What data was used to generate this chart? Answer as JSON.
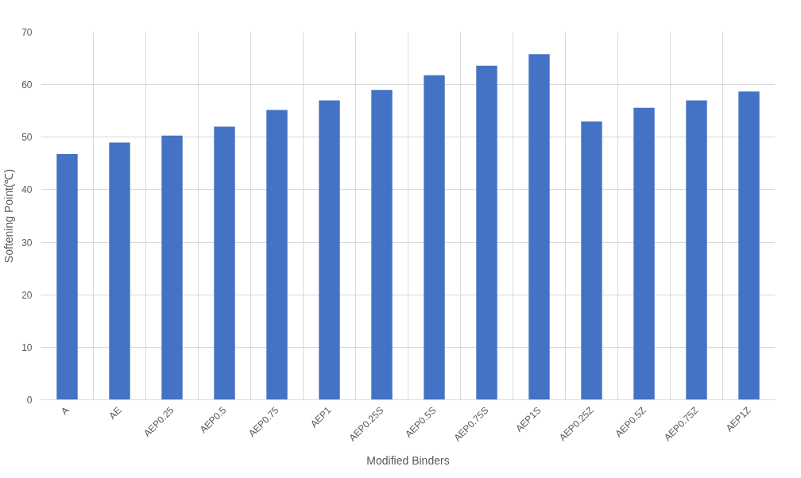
{
  "chart_data": {
    "type": "bar",
    "xlabel": "Modified Binders",
    "ylabel": "Softening Point(℃)",
    "categories": [
      "A",
      "AE",
      "AEP0.25",
      "AEP0.5",
      "AEP0.75",
      "AEP1",
      "AEP0.25S",
      "AEP0.5S",
      "AEP0.75S",
      "AEP1S",
      "AEP0.25Z",
      "AEP0.5Z",
      "AEP0.75Z",
      "AEP1Z"
    ],
    "values": [
      46.8,
      49,
      50.3,
      52,
      55.2,
      57,
      59,
      61.8,
      63.6,
      65.8,
      53,
      55.6,
      57,
      58.7
    ],
    "color": "#4472c4",
    "ylim": [
      0,
      70
    ],
    "yticks": [
      0,
      10,
      20,
      30,
      40,
      50,
      60,
      70
    ],
    "grid": true
  }
}
